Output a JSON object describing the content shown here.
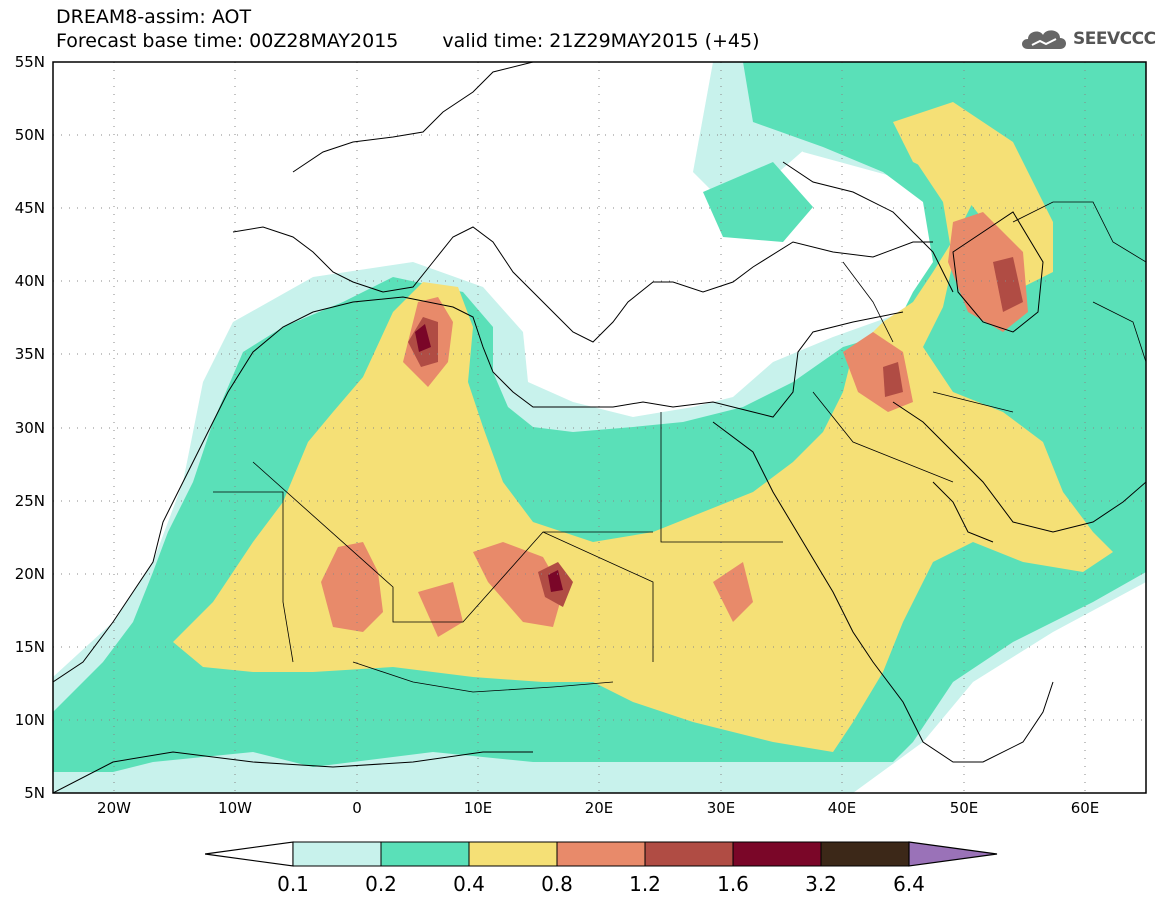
{
  "header": {
    "title": "DREAM8-assim: AOT",
    "base_time": "Forecast base time: 00Z28MAY2015",
    "valid_time": "valid time: 21Z29MAY2015 (+45)"
  },
  "logo": {
    "text": "SEEVCCC",
    "icon": "cloud-icon"
  },
  "map": {
    "lon_range": [
      -25,
      65
    ],
    "lat_range": [
      5,
      55
    ],
    "x_tick_labels": [
      "20W",
      "10W",
      "0",
      "10E",
      "20E",
      "30E",
      "40E",
      "50E",
      "60E"
    ],
    "y_tick_labels": [
      "55N",
      "50N",
      "45N",
      "40N",
      "35N",
      "30N",
      "25N",
      "20N",
      "15N",
      "10N",
      "5N"
    ],
    "grid": "dotted"
  },
  "legend": {
    "levels": [
      "0.1",
      "0.2",
      "0.4",
      "0.8",
      "1.2",
      "1.6",
      "3.2",
      "6.4"
    ],
    "colors": [
      "#c8f2ec",
      "#5ae0b8",
      "#f5e076",
      "#e88a6a",
      "#b04c44",
      "#7a0628",
      "#3c2818",
      "#9a72b8"
    ],
    "under_color": "#ffffff"
  }
}
